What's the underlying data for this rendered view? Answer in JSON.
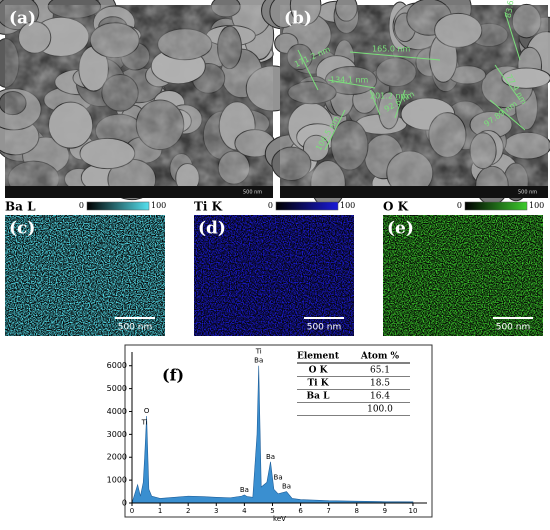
{
  "sem": [
    {
      "label": "(a)",
      "scale_bar": "500 nm"
    },
    {
      "label": "(b)",
      "scale_bar": "500 nm",
      "measurements": [
        "165.0 nm",
        "83.65 nm",
        "171.2 nm",
        "134.1 nm",
        "201.2 nm",
        "92.6 nm",
        "77.4 nm",
        "97.89 nm",
        "106.5 nm"
      ]
    }
  ],
  "maps": [
    {
      "label": "(c)",
      "element": "Ba L",
      "cbar": [
        0,
        100
      ],
      "color": "#55e0ee",
      "scale_bar": "500 nm"
    },
    {
      "label": "(d)",
      "element": "Ti K",
      "cbar": [
        0,
        100
      ],
      "color": "#1a1ad8",
      "scale_bar": "500 nm"
    },
    {
      "label": "(e)",
      "element": "O K",
      "cbar": [
        0,
        100
      ],
      "color": "#3ccc2c",
      "scale_bar": "500 nm"
    }
  ],
  "chart_data": {
    "type": "area",
    "label": "(f)",
    "x_label": "keV",
    "color": "#3a8fd0",
    "x": [
      0,
      0.1,
      0.2,
      0.3,
      0.4,
      0.45,
      0.52,
      0.6,
      0.7,
      1,
      1.5,
      2,
      2.5,
      3,
      3.5,
      3.9,
      4.0,
      4.1,
      4.3,
      4.45,
      4.51,
      4.6,
      4.8,
      4.93,
      5.05,
      5.2,
      5.5,
      5.7,
      6,
      7,
      8,
      9,
      10
    ],
    "values": [
      0,
      400,
      800,
      300,
      900,
      2000,
      3800,
      600,
      300,
      200,
      250,
      300,
      280,
      250,
      230,
      300,
      350,
      280,
      250,
      3000,
      6000,
      700,
      900,
      1800,
      600,
      400,
      500,
      200,
      150,
      100,
      80,
      60,
      50
    ],
    "xlim": [
      0,
      10.5
    ],
    "xticks": [
      0,
      1,
      2,
      3,
      4,
      5,
      6,
      7,
      8,
      9,
      10
    ],
    "ylim": [
      0,
      6600
    ],
    "yticks": [
      0,
      1000,
      2000,
      3000,
      4000,
      5000,
      6000
    ],
    "peaks": [
      {
        "label": "O",
        "x": 0.52,
        "y": 3800
      },
      {
        "label": "Ti",
        "x": 0.45,
        "y": 3300
      },
      {
        "label": "Ti",
        "x": 4.51,
        "y": 6400
      },
      {
        "label": "Ba",
        "x": 4.51,
        "y": 6000
      },
      {
        "label": "Ba",
        "x": 4.0,
        "y": 350
      },
      {
        "label": "Ba",
        "x": 4.93,
        "y": 1800
      },
      {
        "label": "Ba",
        "x": 5.5,
        "y": 500
      },
      {
        "label": "Ba",
        "x": 5.2,
        "y": 900
      }
    ],
    "table": {
      "header": [
        "Element",
        "Atom %"
      ],
      "rows": [
        [
          "O K",
          65.1
        ],
        [
          "Ti K",
          18.5
        ],
        [
          "Ba L",
          16.4
        ],
        [
          "",
          {
            "value": 100,
            "label": "100.0"
          }
        ]
      ]
    }
  }
}
